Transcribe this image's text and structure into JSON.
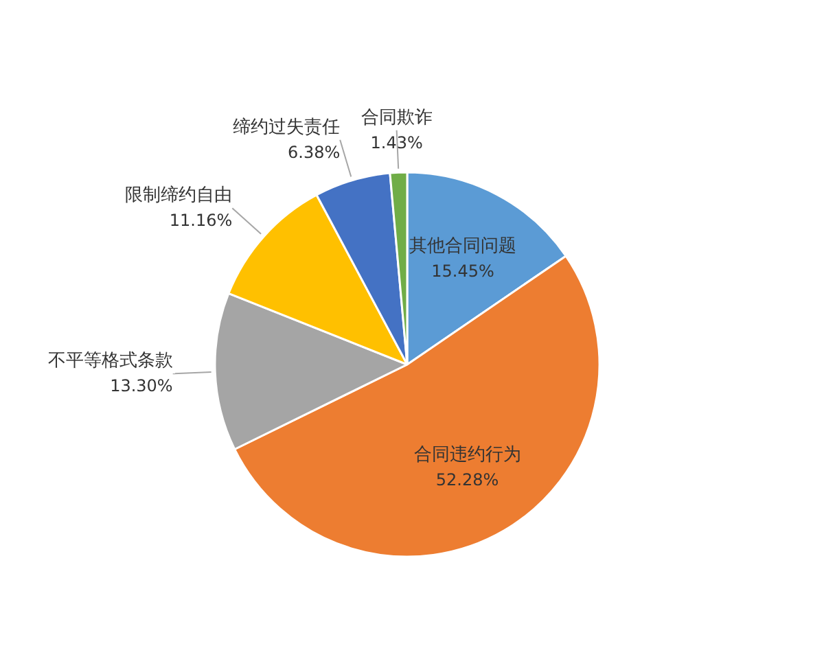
{
  "chart_data": {
    "type": "pie",
    "categories": [
      "其他合同问题",
      "合同违约行为",
      "不平等格式条款",
      "限制缔约自由",
      "缔约过失责任",
      "合同欺诈"
    ],
    "values": [
      15.45,
      52.28,
      13.3,
      11.16,
      6.38,
      1.43
    ],
    "colors": [
      "#5b9bd5",
      "#ed7d31",
      "#a5a5a5",
      "#ffc000",
      "#4472c4",
      "#70ad47"
    ],
    "value_labels": [
      "15.45%",
      "52.28%",
      "13.30%",
      "11.16%",
      "6.38%",
      "1.43%"
    ],
    "legend": false
  }
}
